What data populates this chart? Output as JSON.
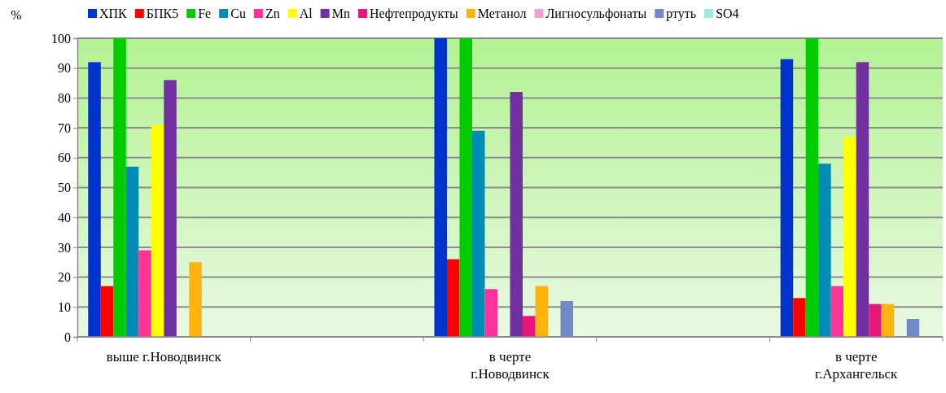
{
  "chart_data": {
    "type": "bar",
    "ylabel": "%",
    "categories": [
      "выше г.Новодвинск",
      null,
      "в черте г.Новодвинск",
      null,
      "в черте г.Архангельск"
    ],
    "series": [
      {
        "name": "ХПК",
        "color": "#0033cc",
        "values": [
          92,
          null,
          100,
          null,
          93
        ]
      },
      {
        "name": "БПК5",
        "color": "#ff0000",
        "values": [
          17,
          null,
          26,
          null,
          13
        ]
      },
      {
        "name": "Fe",
        "color": "#00cc00",
        "values": [
          100,
          null,
          100,
          null,
          100
        ]
      },
      {
        "name": "Cu",
        "color": "#008cb4",
        "values": [
          57,
          null,
          69,
          null,
          58
        ]
      },
      {
        "name": "Zn",
        "color": "#ff3399",
        "values": [
          29,
          null,
          16,
          null,
          17
        ]
      },
      {
        "name": "Al",
        "color": "#ffff00",
        "values": [
          71,
          null,
          null,
          null,
          67
        ]
      },
      {
        "name": "Mn",
        "color": "#7030a0",
        "values": [
          86,
          null,
          82,
          null,
          92
        ]
      },
      {
        "name": "Нефтепродукты",
        "color": "#e8177a",
        "values": [
          null,
          null,
          7,
          null,
          11
        ]
      },
      {
        "name": "Метанол",
        "color": "#ffb30f",
        "values": [
          25,
          null,
          17,
          null,
          11
        ]
      },
      {
        "name": "Лигносульфонаты",
        "color": "#f59fcb",
        "values": [
          null,
          null,
          null,
          null,
          null
        ]
      },
      {
        "name": "ртуть",
        "color": "#7289c8",
        "values": [
          null,
          null,
          12,
          null,
          6
        ]
      },
      {
        "name": "SO4",
        "color": "#99eee0",
        "values": [
          null,
          null,
          null,
          null,
          null
        ]
      }
    ],
    "ylim": [
      0,
      100
    ],
    "yticks": [
      0,
      10,
      20,
      30,
      40,
      50,
      60,
      70,
      80,
      90,
      100
    ],
    "grid": "y",
    "legend": "top"
  }
}
